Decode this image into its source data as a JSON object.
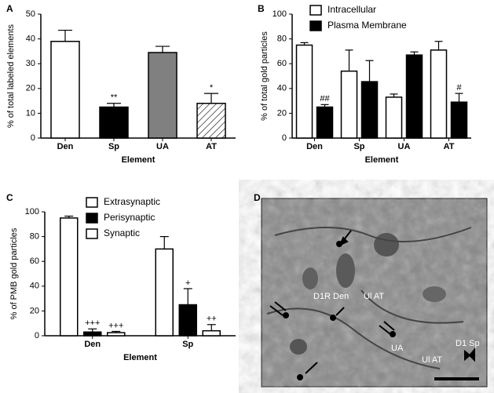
{
  "chart_data": [
    {
      "type": "bar",
      "panel": "A",
      "ylabel": "% of total labeled elements",
      "xlabel": "Element",
      "categories": [
        "Den",
        "Sp",
        "UA",
        "AT"
      ],
      "series": [
        {
          "values": [
            39,
            12.5,
            34.5,
            14
          ],
          "errors": [
            4.5,
            1.5,
            2.5,
            4
          ],
          "colors": [
            "#ffffff",
            "#000000",
            "#808080",
            "#ffffff"
          ],
          "hatch": [
            false,
            false,
            false,
            true
          ],
          "annotations": [
            null,
            "**",
            null,
            "*"
          ]
        }
      ],
      "ylim": [
        0,
        50
      ],
      "yticks": [
        0,
        10,
        20,
        30,
        40,
        50
      ]
    },
    {
      "type": "bar",
      "panel": "B",
      "ylabel": "% of total gold particles",
      "xlabel": "Element",
      "categories": [
        "Den",
        "Sp",
        "UA",
        "AT"
      ],
      "series": [
        {
          "name": "Intracellular",
          "color": "#ffffff",
          "values": [
            75,
            54,
            33,
            71
          ],
          "errors": [
            2,
            17,
            2.5,
            7
          ],
          "annotations": [
            null,
            null,
            null,
            null
          ]
        },
        {
          "name": "Plasma Membrane",
          "color": "#000000",
          "values": [
            25,
            45.5,
            67,
            29
          ],
          "errors": [
            2,
            17,
            2.5,
            7
          ],
          "annotations": [
            "##",
            null,
            null,
            "#"
          ]
        }
      ],
      "ylim": [
        0,
        100
      ],
      "yticks": [
        0,
        20,
        40,
        60,
        80,
        100
      ]
    },
    {
      "type": "bar",
      "panel": "C",
      "ylabel": "% of PMB gold particles",
      "xlabel": "Element",
      "categories": [
        "Den",
        "Sp"
      ],
      "series": [
        {
          "name": "Extrasynaptic",
          "color": "#ffffff",
          "values": [
            95,
            70
          ],
          "errors": [
            1.5,
            10
          ],
          "annotations": [
            null,
            null
          ]
        },
        {
          "name": "Perisynaptic",
          "color": "#000000",
          "values": [
            3,
            25
          ],
          "errors": [
            2.5,
            13
          ],
          "annotations": [
            "+++",
            "+"
          ]
        },
        {
          "name": "Synaptic",
          "color": "#ffffff",
          "values": [
            2.5,
            4
          ],
          "errors": [
            1,
            5
          ],
          "annotations": [
            "+++",
            "++"
          ]
        }
      ],
      "ylim": [
        0,
        100
      ],
      "yticks": [
        0,
        20,
        40,
        60,
        80,
        100
      ]
    }
  ],
  "panel_d": {
    "panel": "D",
    "labels": [
      "D1R Den",
      "Ul AT",
      "UA",
      "Ul AT",
      "D1 Sp"
    ]
  }
}
